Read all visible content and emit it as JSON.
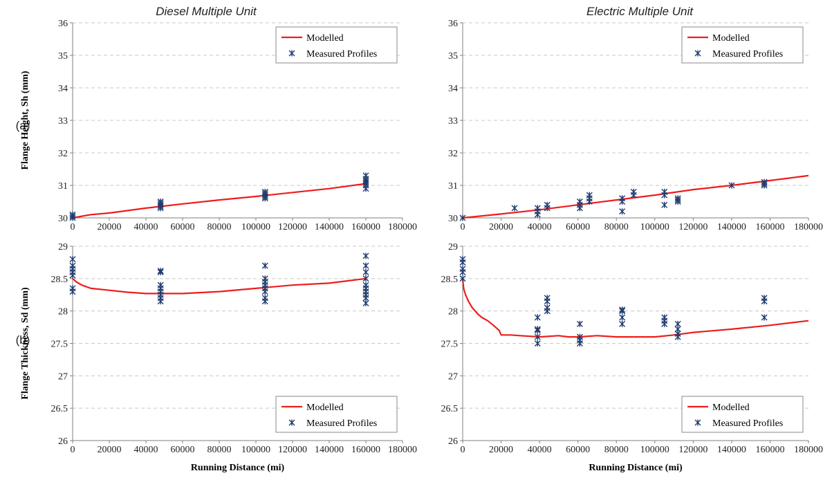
{
  "figure": {
    "column_titles": [
      "Diesel Multiple Unit",
      "Electric Multiple Unit"
    ],
    "row_labels": [
      "(a)",
      "(b)"
    ]
  },
  "colors": {
    "modelled": "#ee1c1c",
    "measured": "#1f3a6e",
    "grid": "#c8c8c8",
    "axis": "#7f7f7f"
  },
  "chart_data": [
    {
      "id": "dmu-height",
      "type": "line",
      "xlabel": "",
      "ylabel": "Flange Height, Sh (mm)",
      "xlim": [
        0,
        180000
      ],
      "ylim": [
        30,
        36
      ],
      "xticks": [
        0,
        20000,
        40000,
        60000,
        80000,
        100000,
        120000,
        140000,
        160000,
        180000
      ],
      "yticks": [
        30,
        31,
        32,
        33,
        34,
        35,
        36
      ],
      "grid": true,
      "legend": {
        "position": "top-right",
        "entries": [
          "Modelled",
          "Measured Profiles"
        ]
      },
      "series": [
        {
          "name": "Modelled",
          "kind": "line",
          "x": [
            0,
            10000,
            20000,
            40000,
            60000,
            80000,
            100000,
            120000,
            140000,
            160000
          ],
          "y": [
            30.0,
            30.1,
            30.15,
            30.3,
            30.43,
            30.55,
            30.66,
            30.78,
            30.9,
            31.05
          ]
        },
        {
          "name": "Measured Profiles",
          "kind": "scatter",
          "x": [
            0,
            0,
            0,
            48000,
            48000,
            48000,
            48000,
            48000,
            105000,
            105000,
            105000,
            105000,
            105000,
            160000,
            160000,
            160000,
            160000,
            160000,
            160000,
            160000
          ],
          "y": [
            30.0,
            30.05,
            30.1,
            30.3,
            30.35,
            30.4,
            30.45,
            30.5,
            30.6,
            30.65,
            30.7,
            30.75,
            30.8,
            30.9,
            31.0,
            31.05,
            31.1,
            31.15,
            31.2,
            31.3
          ]
        }
      ]
    },
    {
      "id": "emu-height",
      "type": "line",
      "xlabel": "",
      "ylabel": "",
      "xlim": [
        0,
        180000
      ],
      "ylim": [
        30,
        36
      ],
      "xticks": [
        0,
        20000,
        40000,
        60000,
        80000,
        100000,
        120000,
        140000,
        160000,
        180000
      ],
      "yticks": [
        30,
        31,
        32,
        33,
        34,
        35,
        36
      ],
      "grid": true,
      "legend": {
        "position": "top-right",
        "entries": [
          "Modelled",
          "Measured Profiles"
        ]
      },
      "series": [
        {
          "name": "Modelled",
          "kind": "line",
          "x": [
            0,
            20000,
            40000,
            60000,
            80000,
            100000,
            120000,
            140000,
            160000,
            180000
          ],
          "y": [
            30.0,
            30.12,
            30.25,
            30.4,
            30.55,
            30.7,
            30.87,
            31.0,
            31.15,
            31.3
          ]
        },
        {
          "name": "Measured Profiles",
          "kind": "scatter",
          "x": [
            0,
            27000,
            39000,
            39000,
            39000,
            44000,
            44000,
            61000,
            61000,
            61000,
            66000,
            66000,
            66000,
            83000,
            83000,
            83000,
            89000,
            89000,
            105000,
            105000,
            105000,
            112000,
            112000,
            112000,
            140000,
            157000,
            157000,
            157000
          ],
          "y": [
            30.0,
            30.3,
            30.1,
            30.2,
            30.3,
            30.3,
            30.4,
            30.3,
            30.4,
            30.5,
            30.5,
            30.6,
            30.7,
            30.2,
            30.5,
            30.6,
            30.7,
            30.8,
            30.4,
            30.7,
            30.8,
            30.5,
            30.55,
            30.6,
            31.0,
            31.0,
            31.05,
            31.1
          ]
        }
      ]
    },
    {
      "id": "dmu-thickness",
      "type": "line",
      "xlabel": "Running Distance (mi)",
      "ylabel": "Flange Thickness, Sd (mm)",
      "xlim": [
        0,
        180000
      ],
      "ylim": [
        26,
        29
      ],
      "xticks": [
        0,
        20000,
        40000,
        60000,
        80000,
        100000,
        120000,
        140000,
        160000,
        180000
      ],
      "yticks": [
        26,
        26.5,
        27,
        27.5,
        28,
        28.5,
        29
      ],
      "grid": true,
      "legend": {
        "position": "bottom-right",
        "entries": [
          "Modelled",
          "Measured Profiles"
        ]
      },
      "series": [
        {
          "name": "Modelled",
          "kind": "line",
          "x": [
            0,
            2000,
            5000,
            10000,
            20000,
            30000,
            40000,
            50000,
            60000,
            80000,
            100000,
            120000,
            140000,
            160000
          ],
          "y": [
            28.5,
            28.45,
            28.4,
            28.35,
            28.32,
            28.29,
            28.27,
            28.27,
            28.27,
            28.3,
            28.35,
            28.4,
            28.43,
            28.5
          ]
        },
        {
          "name": "Measured Profiles",
          "kind": "scatter",
          "x": [
            0,
            0,
            0,
            0,
            0,
            0,
            0,
            48000,
            48000,
            48000,
            48000,
            48000,
            48000,
            48000,
            48000,
            105000,
            105000,
            105000,
            105000,
            105000,
            105000,
            105000,
            105000,
            160000,
            160000,
            160000,
            160000,
            160000,
            160000,
            160000,
            160000,
            160000,
            160000
          ],
          "y": [
            28.3,
            28.35,
            28.55,
            28.6,
            28.65,
            28.7,
            28.8,
            28.15,
            28.2,
            28.25,
            28.3,
            28.35,
            28.4,
            28.6,
            28.62,
            28.15,
            28.2,
            28.3,
            28.35,
            28.4,
            28.45,
            28.5,
            28.7,
            28.12,
            28.2,
            28.25,
            28.3,
            28.35,
            28.4,
            28.5,
            28.6,
            28.7,
            28.85
          ]
        }
      ]
    },
    {
      "id": "emu-thickness",
      "type": "line",
      "xlabel": "Running Distance (mi)",
      "ylabel": "",
      "xlim": [
        0,
        180000
      ],
      "ylim": [
        26,
        29
      ],
      "xticks": [
        0,
        20000,
        40000,
        60000,
        80000,
        100000,
        120000,
        140000,
        160000,
        180000
      ],
      "yticks": [
        26,
        26.5,
        27,
        27.5,
        28,
        28.5,
        29
      ],
      "grid": true,
      "legend": {
        "position": "bottom-right",
        "entries": [
          "Modelled",
          "Measured Profiles"
        ]
      },
      "series": [
        {
          "name": "Modelled",
          "kind": "line",
          "x": [
            0,
            500,
            1500,
            3000,
            5000,
            8000,
            10000,
            13000,
            16000,
            19000,
            20000,
            25000,
            30000,
            35000,
            40000,
            50000,
            55000,
            60000,
            70000,
            80000,
            90000,
            100000,
            110000,
            120000,
            140000,
            160000,
            180000
          ],
          "y": [
            28.5,
            28.35,
            28.25,
            28.15,
            28.05,
            27.95,
            27.9,
            27.85,
            27.78,
            27.7,
            27.63,
            27.63,
            27.62,
            27.61,
            27.6,
            27.62,
            27.6,
            27.6,
            27.62,
            27.6,
            27.6,
            27.6,
            27.63,
            27.67,
            27.72,
            27.78,
            27.85
          ]
        },
        {
          "name": "Measured Profiles",
          "kind": "scatter",
          "x": [
            0,
            0,
            0,
            0,
            0,
            39000,
            39000,
            39000,
            39000,
            39000,
            44000,
            44000,
            44000,
            44000,
            61000,
            61000,
            61000,
            61000,
            83000,
            83000,
            83000,
            83000,
            105000,
            105000,
            105000,
            112000,
            112000,
            112000,
            112000,
            157000,
            157000,
            157000
          ],
          "y": [
            28.5,
            28.6,
            28.65,
            28.75,
            28.8,
            27.5,
            27.6,
            27.7,
            27.72,
            27.9,
            28.0,
            28.05,
            28.15,
            28.2,
            27.5,
            27.55,
            27.6,
            27.8,
            27.8,
            27.9,
            28.0,
            28.02,
            27.8,
            27.85,
            27.9,
            27.6,
            27.65,
            27.72,
            27.8,
            27.9,
            28.15,
            28.2
          ]
        }
      ]
    }
  ]
}
